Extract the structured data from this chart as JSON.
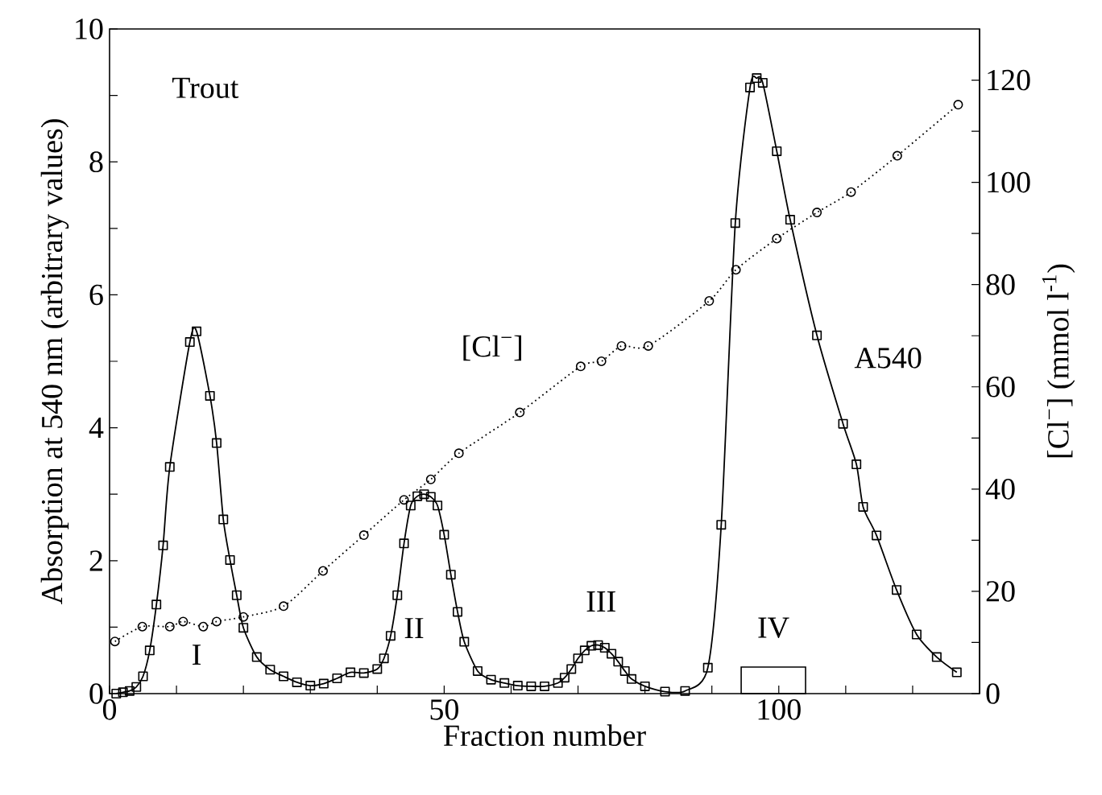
{
  "chart_data": {
    "type": "line",
    "title": "Trout",
    "xlabel": "Fraction number",
    "ylabel": "Absorption at 540 nm (arbitrary values)",
    "y2label": "[Cl$^{−}$] (mmol l$^{-1}$)",
    "xlim": [
      0,
      130
    ],
    "ylim": [
      0,
      10
    ],
    "y2lim": [
      0,
      130
    ],
    "xticks": [
      0,
      {
        "value": 10,
        "label": null
      },
      {
        "value": 20,
        "label": null
      },
      {
        "value": 30,
        "label": null
      },
      {
        "value": 40,
        "label": null
      },
      50,
      {
        "value": 60,
        "label": null
      },
      {
        "value": 70,
        "label": null
      },
      {
        "value": 80,
        "label": null
      },
      {
        "value": 90,
        "label": null
      },
      100,
      {
        "value": 110,
        "label": null
      },
      {
        "value": 120,
        "label": null
      }
    ],
    "yticks": [
      0,
      {
        "value": 1,
        "label": null
      },
      2,
      {
        "value": 3,
        "label": null
      },
      4,
      {
        "value": 5,
        "label": null
      },
      6,
      {
        "value": 7,
        "label": null
      },
      8,
      {
        "value": 9,
        "label": null
      },
      10
    ],
    "y2ticks": [
      0,
      {
        "value": 10,
        "label": null
      },
      20,
      {
        "value": 30,
        "label": null
      },
      40,
      {
        "value": 50,
        "label": null
      },
      60,
      {
        "value": 70,
        "label": null
      },
      80,
      {
        "value": 90,
        "label": null
      },
      100,
      {
        "value": 110,
        "label": null
      },
      120
    ],
    "grid": false,
    "series": [
      {
        "name": "A540",
        "color": "#000000",
        "marker": "square",
        "line_style": "solid",
        "x": [
          1,
          2,
          3,
          4,
          5,
          6,
          7,
          8,
          9,
          12,
          13,
          15,
          16,
          17,
          18,
          19,
          20,
          22,
          24,
          26,
          28,
          30,
          32,
          34,
          36,
          38,
          40,
          41,
          42,
          43,
          44,
          45,
          46,
          47,
          48,
          49,
          50,
          51,
          52,
          53,
          55,
          57,
          59,
          61,
          63,
          65,
          67,
          68,
          69,
          70,
          71,
          72,
          73,
          74,
          75,
          76,
          77,
          78,
          80,
          83,
          86,
          89.4,
          91.4,
          93.5,
          95.7,
          96.7,
          97.6,
          99.7,
          101.7,
          105.7,
          109.6,
          111.6,
          112.6,
          114.6,
          117.6,
          120.6,
          123.6,
          126.6
        ],
        "values": [
          0,
          0.02,
          0.04,
          0.1,
          0.26,
          0.65,
          1.34,
          2.23,
          3.41,
          5.29,
          5.45,
          4.48,
          3.77,
          2.62,
          2.01,
          1.48,
          0.99,
          0.55,
          0.36,
          0.26,
          0.17,
          0.12,
          0.15,
          0.23,
          0.32,
          0.31,
          0.37,
          0.53,
          0.87,
          1.48,
          2.26,
          2.83,
          2.97,
          3.0,
          2.96,
          2.83,
          2.39,
          1.79,
          1.23,
          0.78,
          0.34,
          0.21,
          0.16,
          0.12,
          0.11,
          0.11,
          0.16,
          0.24,
          0.37,
          0.53,
          0.65,
          0.72,
          0.73,
          0.69,
          0.6,
          0.48,
          0.34,
          0.22,
          0.11,
          0.03,
          0.04,
          0.39,
          2.54,
          7.08,
          9.12,
          9.26,
          9.19,
          8.16,
          7.13,
          5.39,
          4.06,
          3.45,
          2.81,
          2.38,
          1.56,
          0.89,
          0.55,
          0.32
        ]
      },
      {
        "name": "[Cl$^{−}$]",
        "color": "#000000",
        "marker": "circle",
        "line_style": "dotted",
        "axis": "y2",
        "x": [
          0.8,
          4.9,
          9,
          11,
          14,
          16,
          20,
          26,
          31.9,
          38,
          44,
          48,
          52.2,
          61.3,
          70.4,
          73.5,
          76.5,
          80.5,
          89.6,
          93.6,
          99.7,
          105.7,
          110.8,
          117.7,
          126.8
        ],
        "values": [
          10.2,
          13.1,
          13.1,
          14.1,
          13.1,
          14.1,
          15,
          17.1,
          24,
          31,
          37.9,
          41.9,
          47,
          55,
          64,
          65,
          68,
          68,
          76.8,
          82.9,
          89,
          94.1,
          98.1,
          105.2,
          115.2
        ]
      }
    ],
    "annotations": [
      "I",
      "II",
      "III",
      "IV"
    ]
  }
}
